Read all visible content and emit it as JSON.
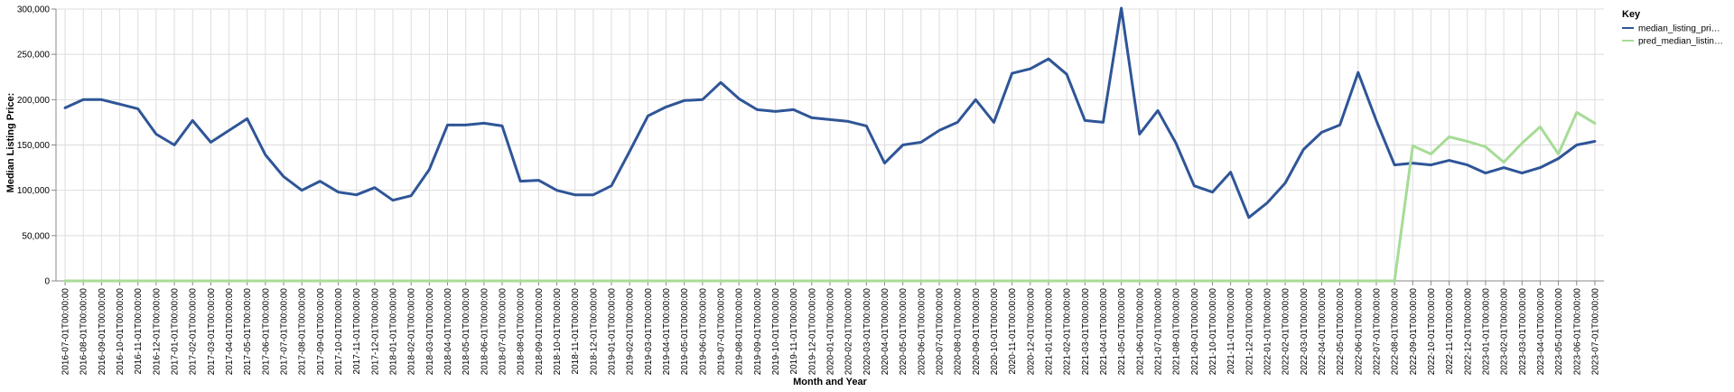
{
  "chart_data": {
    "type": "line",
    "xlabel": "Month and Year",
    "ylabel": "Median Listing Price:",
    "ylim": [
      0,
      300000
    ],
    "yticks": [
      0,
      50000,
      100000,
      150000,
      200000,
      250000,
      300000
    ],
    "ytick_labels": [
      "0",
      "50,000",
      "100,000",
      "150,000",
      "200,000",
      "250,000",
      "300,000"
    ],
    "grid": true,
    "legend": {
      "title": "Key",
      "placement": "top-right"
    },
    "categories": [
      "2016-07-01T00:00:00",
      "2016-08-01T00:00:00",
      "2016-09-01T00:00:00",
      "2016-10-01T00:00:00",
      "2016-11-01T00:00:00",
      "2016-12-01T00:00:00",
      "2017-01-01T00:00:00",
      "2017-02-01T00:00:00",
      "2017-03-01T00:00:00",
      "2017-04-01T00:00:00",
      "2017-05-01T00:00:00",
      "2017-06-01T00:00:00",
      "2017-07-01T00:00:00",
      "2017-08-01T00:00:00",
      "2017-09-01T00:00:00",
      "2017-10-01T00:00:00",
      "2017-11-01T00:00:00",
      "2017-12-01T00:00:00",
      "2018-01-01T00:00:00",
      "2018-02-01T00:00:00",
      "2018-03-01T00:00:00",
      "2018-04-01T00:00:00",
      "2018-05-01T00:00:00",
      "2018-06-01T00:00:00",
      "2018-07-01T00:00:00",
      "2018-08-01T00:00:00",
      "2018-09-01T00:00:00",
      "2018-10-01T00:00:00",
      "2018-11-01T00:00:00",
      "2018-12-01T00:00:00",
      "2019-01-01T00:00:00",
      "2019-02-01T00:00:00",
      "2019-03-01T00:00:00",
      "2019-04-01T00:00:00",
      "2019-05-01T00:00:00",
      "2019-06-01T00:00:00",
      "2019-07-01T00:00:00",
      "2019-08-01T00:00:00",
      "2019-09-01T00:00:00",
      "2019-10-01T00:00:00",
      "2019-11-01T00:00:00",
      "2019-12-01T00:00:00",
      "2020-01-01T00:00:00",
      "2020-02-01T00:00:00",
      "2020-03-01T00:00:00",
      "2020-04-01T00:00:00",
      "2020-05-01T00:00:00",
      "2020-06-01T00:00:00",
      "2020-07-01T00:00:00",
      "2020-08-01T00:00:00",
      "2020-09-01T00:00:00",
      "2020-10-01T00:00:00",
      "2020-11-01T00:00:00",
      "2020-12-01T00:00:00",
      "2021-01-01T00:00:00",
      "2021-02-01T00:00:00",
      "2021-03-01T00:00:00",
      "2021-04-01T00:00:00",
      "2021-05-01T00:00:00",
      "2021-06-01T00:00:00",
      "2021-07-01T00:00:00",
      "2021-08-01T00:00:00",
      "2021-09-01T00:00:00",
      "2021-10-01T00:00:00",
      "2021-11-01T00:00:00",
      "2021-12-01T00:00:00",
      "2022-01-01T00:00:00",
      "2022-02-01T00:00:00",
      "2022-03-01T00:00:00",
      "2022-04-01T00:00:00",
      "2022-05-01T00:00:00",
      "2022-06-01T00:00:00",
      "2022-07-01T00:00:00",
      "2022-08-01T00:00:00",
      "2022-09-01T00:00:00",
      "2022-10-01T00:00:00",
      "2022-11-01T00:00:00",
      "2022-12-01T00:00:00",
      "2023-01-01T00:00:00",
      "2023-02-01T00:00:00",
      "2023-03-01T00:00:00",
      "2023-04-01T00:00:00",
      "2023-05-01T00:00:00",
      "2023-06-01T00:00:00",
      "2023-07-01T00:00:00"
    ],
    "series": [
      {
        "name": "median_listing_pri…",
        "color": "#2f5597",
        "values": [
          191000,
          200000,
          200000,
          195000,
          190000,
          162000,
          150000,
          177000,
          153000,
          166000,
          179000,
          139000,
          115000,
          100000,
          110000,
          98000,
          95000,
          103000,
          89000,
          94000,
          123000,
          172000,
          172000,
          174000,
          171000,
          110000,
          111000,
          100000,
          95000,
          95000,
          105000,
          143000,
          182000,
          192000,
          199000,
          200000,
          219000,
          201000,
          189000,
          187000,
          189000,
          180000,
          178000,
          176000,
          171000,
          130000,
          150000,
          153000,
          166000,
          175000,
          200000,
          175000,
          229000,
          234000,
          245000,
          228000,
          177000,
          175000,
          301000,
          162000,
          188000,
          152000,
          105000,
          98000,
          120000,
          70000,
          86000,
          108000,
          145000,
          164000,
          172000,
          230000,
          177000,
          128000,
          130000,
          128000,
          133000,
          128000,
          119000,
          125000,
          119000,
          125000,
          135000,
          150000,
          154000
        ]
      },
      {
        "name": "pred_median_listin…",
        "color": "#a6dc96",
        "values": [
          0,
          0,
          0,
          0,
          0,
          0,
          0,
          0,
          0,
          0,
          0,
          0,
          0,
          0,
          0,
          0,
          0,
          0,
          0,
          0,
          0,
          0,
          0,
          0,
          0,
          0,
          0,
          0,
          0,
          0,
          0,
          0,
          0,
          0,
          0,
          0,
          0,
          0,
          0,
          0,
          0,
          0,
          0,
          0,
          0,
          0,
          0,
          0,
          0,
          0,
          0,
          0,
          0,
          0,
          0,
          0,
          0,
          0,
          0,
          0,
          0,
          0,
          0,
          0,
          0,
          0,
          0,
          0,
          0,
          0,
          0,
          0,
          0,
          0,
          149000,
          140000,
          159000,
          154000,
          148000,
          131000,
          152000,
          170000,
          140000,
          186000,
          174000
        ]
      }
    ]
  }
}
